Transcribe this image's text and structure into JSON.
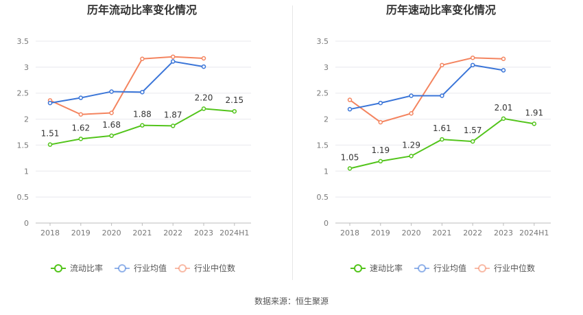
{
  "chart_data": [
    {
      "type": "line",
      "title": "历年流动比率变化情况",
      "categories": [
        "2018",
        "2019",
        "2020",
        "2021",
        "2022",
        "2023",
        "2024H1"
      ],
      "ylim": [
        0,
        3.5
      ],
      "yticks": [
        "0",
        "0.5",
        "1",
        "1.5",
        "2",
        "2.5",
        "3",
        "3.5"
      ],
      "grid": true,
      "legend_position": "bottom",
      "series": [
        {
          "name": "流动比率",
          "color": "#52c41a",
          "values": [
            1.51,
            1.62,
            1.68,
            1.88,
            1.87,
            2.2,
            2.15
          ],
          "labels": [
            "1.51",
            "1.62",
            "1.68",
            "1.88",
            "1.87",
            "2.20",
            "2.15"
          ]
        },
        {
          "name": "行业均值",
          "color": "#3a75d8",
          "values": [
            2.31,
            2.41,
            2.53,
            2.52,
            3.11,
            3.01,
            null
          ]
        },
        {
          "name": "行业中位数",
          "color": "#f4845f",
          "values": [
            2.36,
            2.09,
            2.12,
            3.16,
            3.2,
            3.17,
            null
          ]
        }
      ]
    },
    {
      "type": "line",
      "title": "历年速动比率变化情况",
      "categories": [
        "2018",
        "2019",
        "2020",
        "2021",
        "2022",
        "2023",
        "2024H1"
      ],
      "ylim": [
        0,
        3.5
      ],
      "yticks": [
        "0",
        "0.5",
        "1",
        "1.5",
        "2",
        "2.5",
        "3",
        "3.5"
      ],
      "grid": true,
      "legend_position": "bottom",
      "series": [
        {
          "name": "速动比率",
          "color": "#52c41a",
          "values": [
            1.05,
            1.19,
            1.29,
            1.61,
            1.57,
            2.01,
            1.91
          ],
          "labels": [
            "1.05",
            "1.19",
            "1.29",
            "1.61",
            "1.57",
            "2.01",
            "1.91"
          ]
        },
        {
          "name": "行业均值",
          "color": "#3a75d8",
          "values": [
            2.19,
            2.31,
            2.45,
            2.45,
            3.04,
            2.94,
            null
          ]
        },
        {
          "name": "行业中位数",
          "color": "#f4845f",
          "values": [
            2.37,
            1.94,
            2.11,
            3.04,
            3.18,
            3.16,
            null
          ]
        }
      ]
    }
  ],
  "footer": {
    "source": "数据来源：恒生聚源"
  }
}
